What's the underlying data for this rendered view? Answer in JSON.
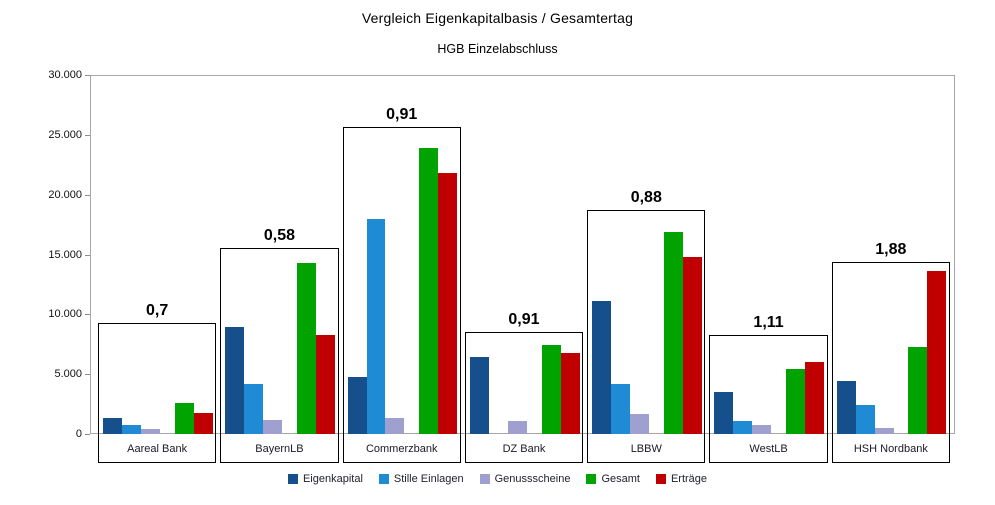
{
  "title": "Vergleich Eigenkapitalbasis / Gesamtertag",
  "subtitle": "HGB Einzelabschluss",
  "chart_data": {
    "type": "bar",
    "title": "Vergleich Eigenkapitalbasis / Gesamtertag",
    "subtitle": "HGB Einzelabschluss",
    "categories": [
      "Aareal Bank",
      "BayernLB",
      "Commerzbank",
      "DZ Bank",
      "LBBW",
      "WestLB",
      "HSH Nordbank"
    ],
    "series": [
      {
        "name": "Eigenkapital",
        "color": "#15508C",
        "values": [
          1350,
          8950,
          4730,
          6400,
          11100,
          3550,
          4400
        ]
      },
      {
        "name": "Stille Einlagen",
        "color": "#1E8BD4",
        "values": [
          750,
          4200,
          18000,
          0,
          4150,
          1100,
          2450
        ]
      },
      {
        "name": "Genussscheine",
        "color": "#9FA0D0",
        "values": [
          420,
          1180,
          1350,
          1090,
          1650,
          760,
          500
        ]
      },
      {
        "name": "Gesamt",
        "color": "#00A300",
        "values": [
          2550,
          14250,
          23900,
          7400,
          16850,
          5400,
          7250
        ]
      },
      {
        "name": "Erträge",
        "color": "#C00000",
        "values": [
          1780,
          8280,
          21800,
          6730,
          14800,
          6000,
          13650
        ]
      }
    ],
    "ratio_labels": [
      "0,7",
      "0,58",
      "0,91",
      "0,91",
      "0,88",
      "1,11",
      "1,88"
    ],
    "group_box_top_values": [
      9300,
      15550,
      25650,
      8500,
      18750,
      8300,
      14400
    ],
    "ylim": [
      0,
      30000
    ],
    "ytick_step": 5000,
    "ytick_labels": [
      "0",
      "5.000",
      "10.000",
      "15.000",
      "20.000",
      "25.000",
      "30.000"
    ],
    "grid": "horizontal-dashed",
    "legend_position": "bottom",
    "xlabel": "",
    "ylabel": ""
  }
}
